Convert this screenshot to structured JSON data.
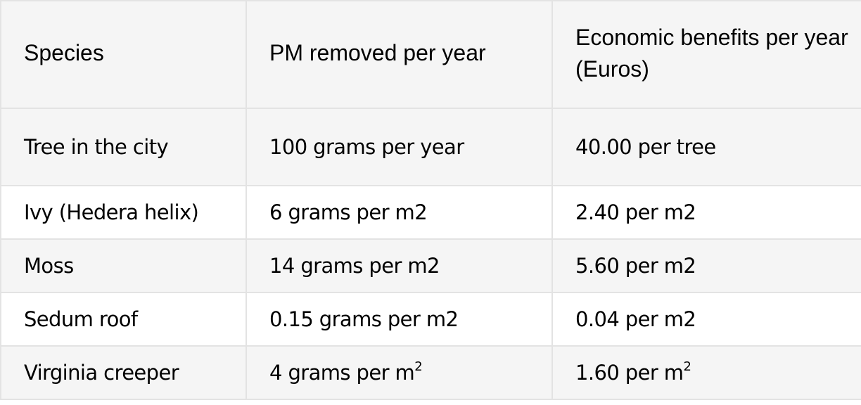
{
  "table": {
    "headers": [
      "Species",
      "PM removed per year",
      "Economic benefits per year (Euros)"
    ],
    "rows": [
      {
        "species": "Tree in the city",
        "pm": "100 grams per year",
        "benefit": "40.00 per tree"
      },
      {
        "species": "Ivy (Hedera helix)",
        "pm": "6 grams per m2",
        "benefit": "2.40 per m2"
      },
      {
        "species": "Moss",
        "pm": "14 grams per m2",
        "benefit": "5.60 per m2"
      },
      {
        "species": "Sedum roof",
        "pm": "0.15 grams per m2",
        "benefit": "0.04 per m2"
      },
      {
        "species": "Virginia creeper",
        "pm": "4 grams per m",
        "pm_sup": "2",
        "benefit": "1.60 per m",
        "benefit_sup": "2"
      }
    ]
  }
}
